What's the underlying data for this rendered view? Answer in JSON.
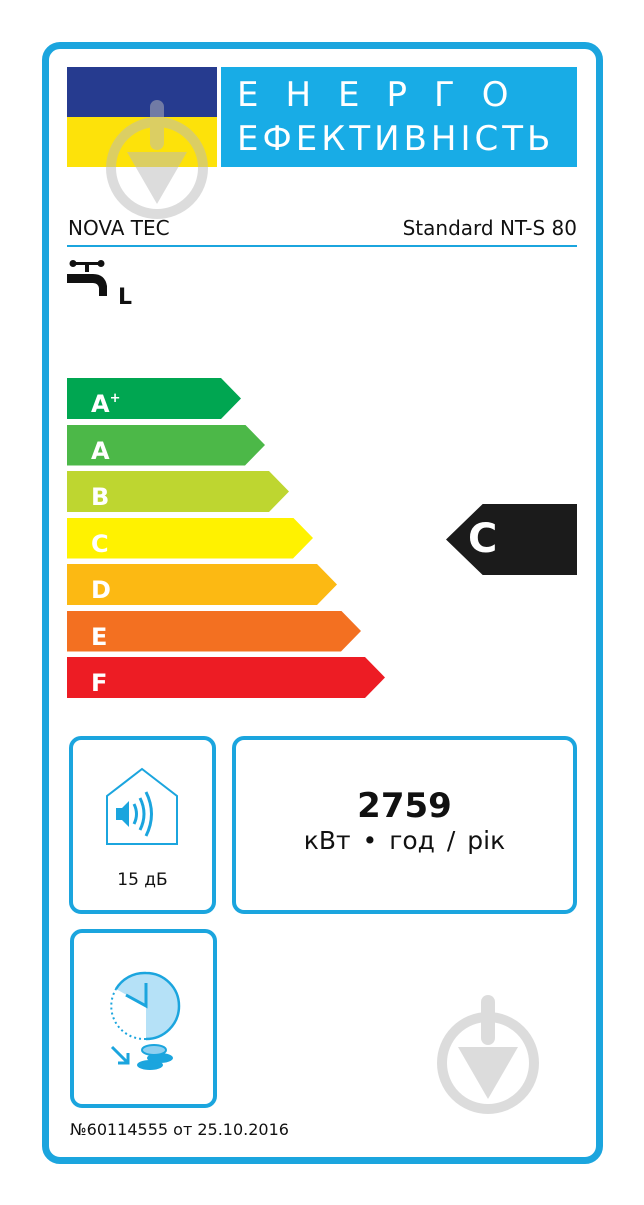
{
  "header": {
    "title_line1": "ЕНЕРГО",
    "title_line2": "ЕФЕКТИВНІСТЬ",
    "flag_colors": [
      "#263b8f",
      "#fde20a"
    ]
  },
  "product": {
    "brand": "NOVA TEC",
    "model": "Standard NT-S 80",
    "load_profile": "L",
    "icon": "water-tap-icon"
  },
  "scale": [
    {
      "label": "A",
      "sup": "+",
      "color": "#00a651"
    },
    {
      "label": "A",
      "sup": "",
      "color": "#4cb848"
    },
    {
      "label": "B",
      "sup": "",
      "color": "#bed630"
    },
    {
      "label": "C",
      "sup": "",
      "color": "#fff200"
    },
    {
      "label": "D",
      "sup": "",
      "color": "#fcb913"
    },
    {
      "label": "E",
      "sup": "",
      "color": "#f37021"
    },
    {
      "label": "F",
      "sup": "",
      "color": "#ed1c24"
    }
  ],
  "rating": {
    "class": "C"
  },
  "noise": {
    "value": "15 дБ",
    "icon": "house-speaker-icon"
  },
  "energy": {
    "value": "2759",
    "unit": "кВт • год / рік"
  },
  "timer": {
    "icon": "clock-savings-icon"
  },
  "footer": {
    "text": "№60114555 от 25.10.2016"
  },
  "accent": "#1ba5de"
}
